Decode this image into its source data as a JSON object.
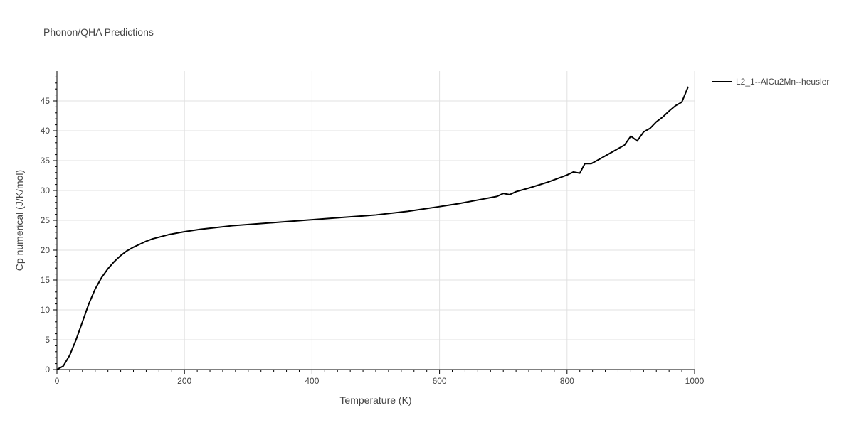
{
  "chart_data": {
    "type": "line",
    "title": "Phonon/QHA Predictions",
    "xlabel": "Temperature (K)",
    "ylabel": "Cp numerical (J/K/mol)",
    "xlim": [
      0,
      1000
    ],
    "ylim": [
      0,
      50
    ],
    "x_ticks": [
      0,
      200,
      400,
      600,
      800,
      1000
    ],
    "y_ticks": [
      0,
      5,
      10,
      15,
      20,
      25,
      30,
      35,
      40,
      45
    ],
    "grid": true,
    "legend_position": "top-right",
    "series": [
      {
        "name": "L2_1--AlCu2Mn--heusler",
        "color": "#000000",
        "x": [
          0,
          10,
          20,
          30,
          40,
          50,
          60,
          70,
          80,
          90,
          100,
          110,
          120,
          130,
          140,
          150,
          175,
          200,
          225,
          250,
          275,
          300,
          350,
          400,
          450,
          500,
          550,
          600,
          630,
          660,
          690,
          700,
          710,
          720,
          740,
          770,
          800,
          810,
          820,
          828,
          838,
          850,
          870,
          890,
          900,
          910,
          920,
          930,
          940,
          950,
          960,
          970,
          980,
          990
        ],
        "y": [
          0,
          0.6,
          2.4,
          5.0,
          8.0,
          11.0,
          13.5,
          15.4,
          16.9,
          18.1,
          19.1,
          19.9,
          20.5,
          21.0,
          21.5,
          21.9,
          22.6,
          23.1,
          23.5,
          23.8,
          24.1,
          24.3,
          24.7,
          25.1,
          25.5,
          25.9,
          26.5,
          27.3,
          27.8,
          28.4,
          29.0,
          29.5,
          29.3,
          29.8,
          30.4,
          31.4,
          32.6,
          33.1,
          32.9,
          34.5,
          34.5,
          35.2,
          36.4,
          37.6,
          39.1,
          38.3,
          39.8,
          40.4,
          41.5,
          42.3,
          43.3,
          44.2,
          44.8,
          47.4
        ]
      }
    ]
  }
}
